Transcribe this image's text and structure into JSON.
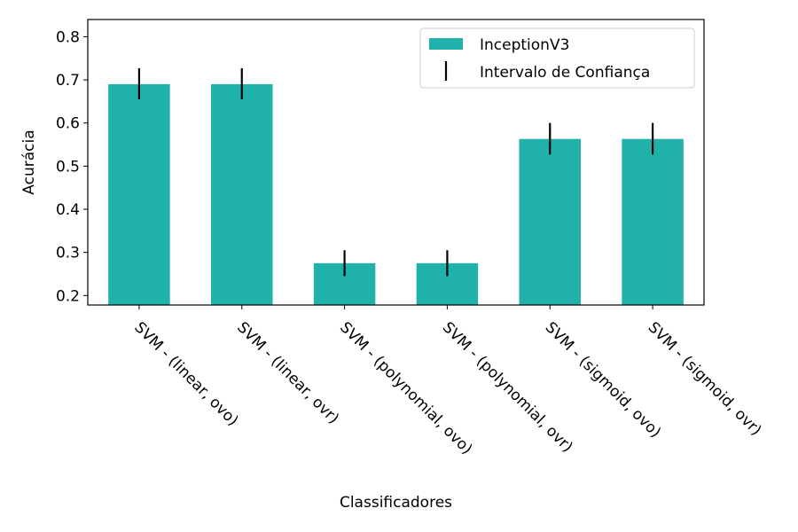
{
  "chart_data": {
    "type": "bar",
    "title": "",
    "xlabel": "Classificadores",
    "ylabel": "Acurácia",
    "categories": [
      "SVM - (linear, ovo)",
      "SVM - (linear, ovr)",
      "SVM - (polynomial, ovo)",
      "SVM - (polynomial, ovr)",
      "SVM - (sigmoid, ovo)",
      "SVM - (sigmoid, ovr)"
    ],
    "series": [
      {
        "name": "InceptionV3",
        "color": "#20b2aa",
        "values": [
          0.69,
          0.69,
          0.275,
          0.275,
          0.563,
          0.563
        ],
        "error_low": [
          0.655,
          0.655,
          0.245,
          0.245,
          0.527,
          0.527
        ],
        "error_high": [
          0.727,
          0.727,
          0.305,
          0.305,
          0.6,
          0.6
        ]
      }
    ],
    "error_bar_label": "Intervalo de Confiança",
    "error_bar_color": "#000000",
    "ylim": [
      0.178,
      0.84
    ],
    "yticks": [
      0.2,
      0.3,
      0.4,
      0.5,
      0.6,
      0.7,
      0.8
    ],
    "ytick_labels": [
      "0.2",
      "0.3",
      "0.4",
      "0.5",
      "0.6",
      "0.7",
      "0.8"
    ],
    "grid": false,
    "legend_position": "top-right"
  }
}
